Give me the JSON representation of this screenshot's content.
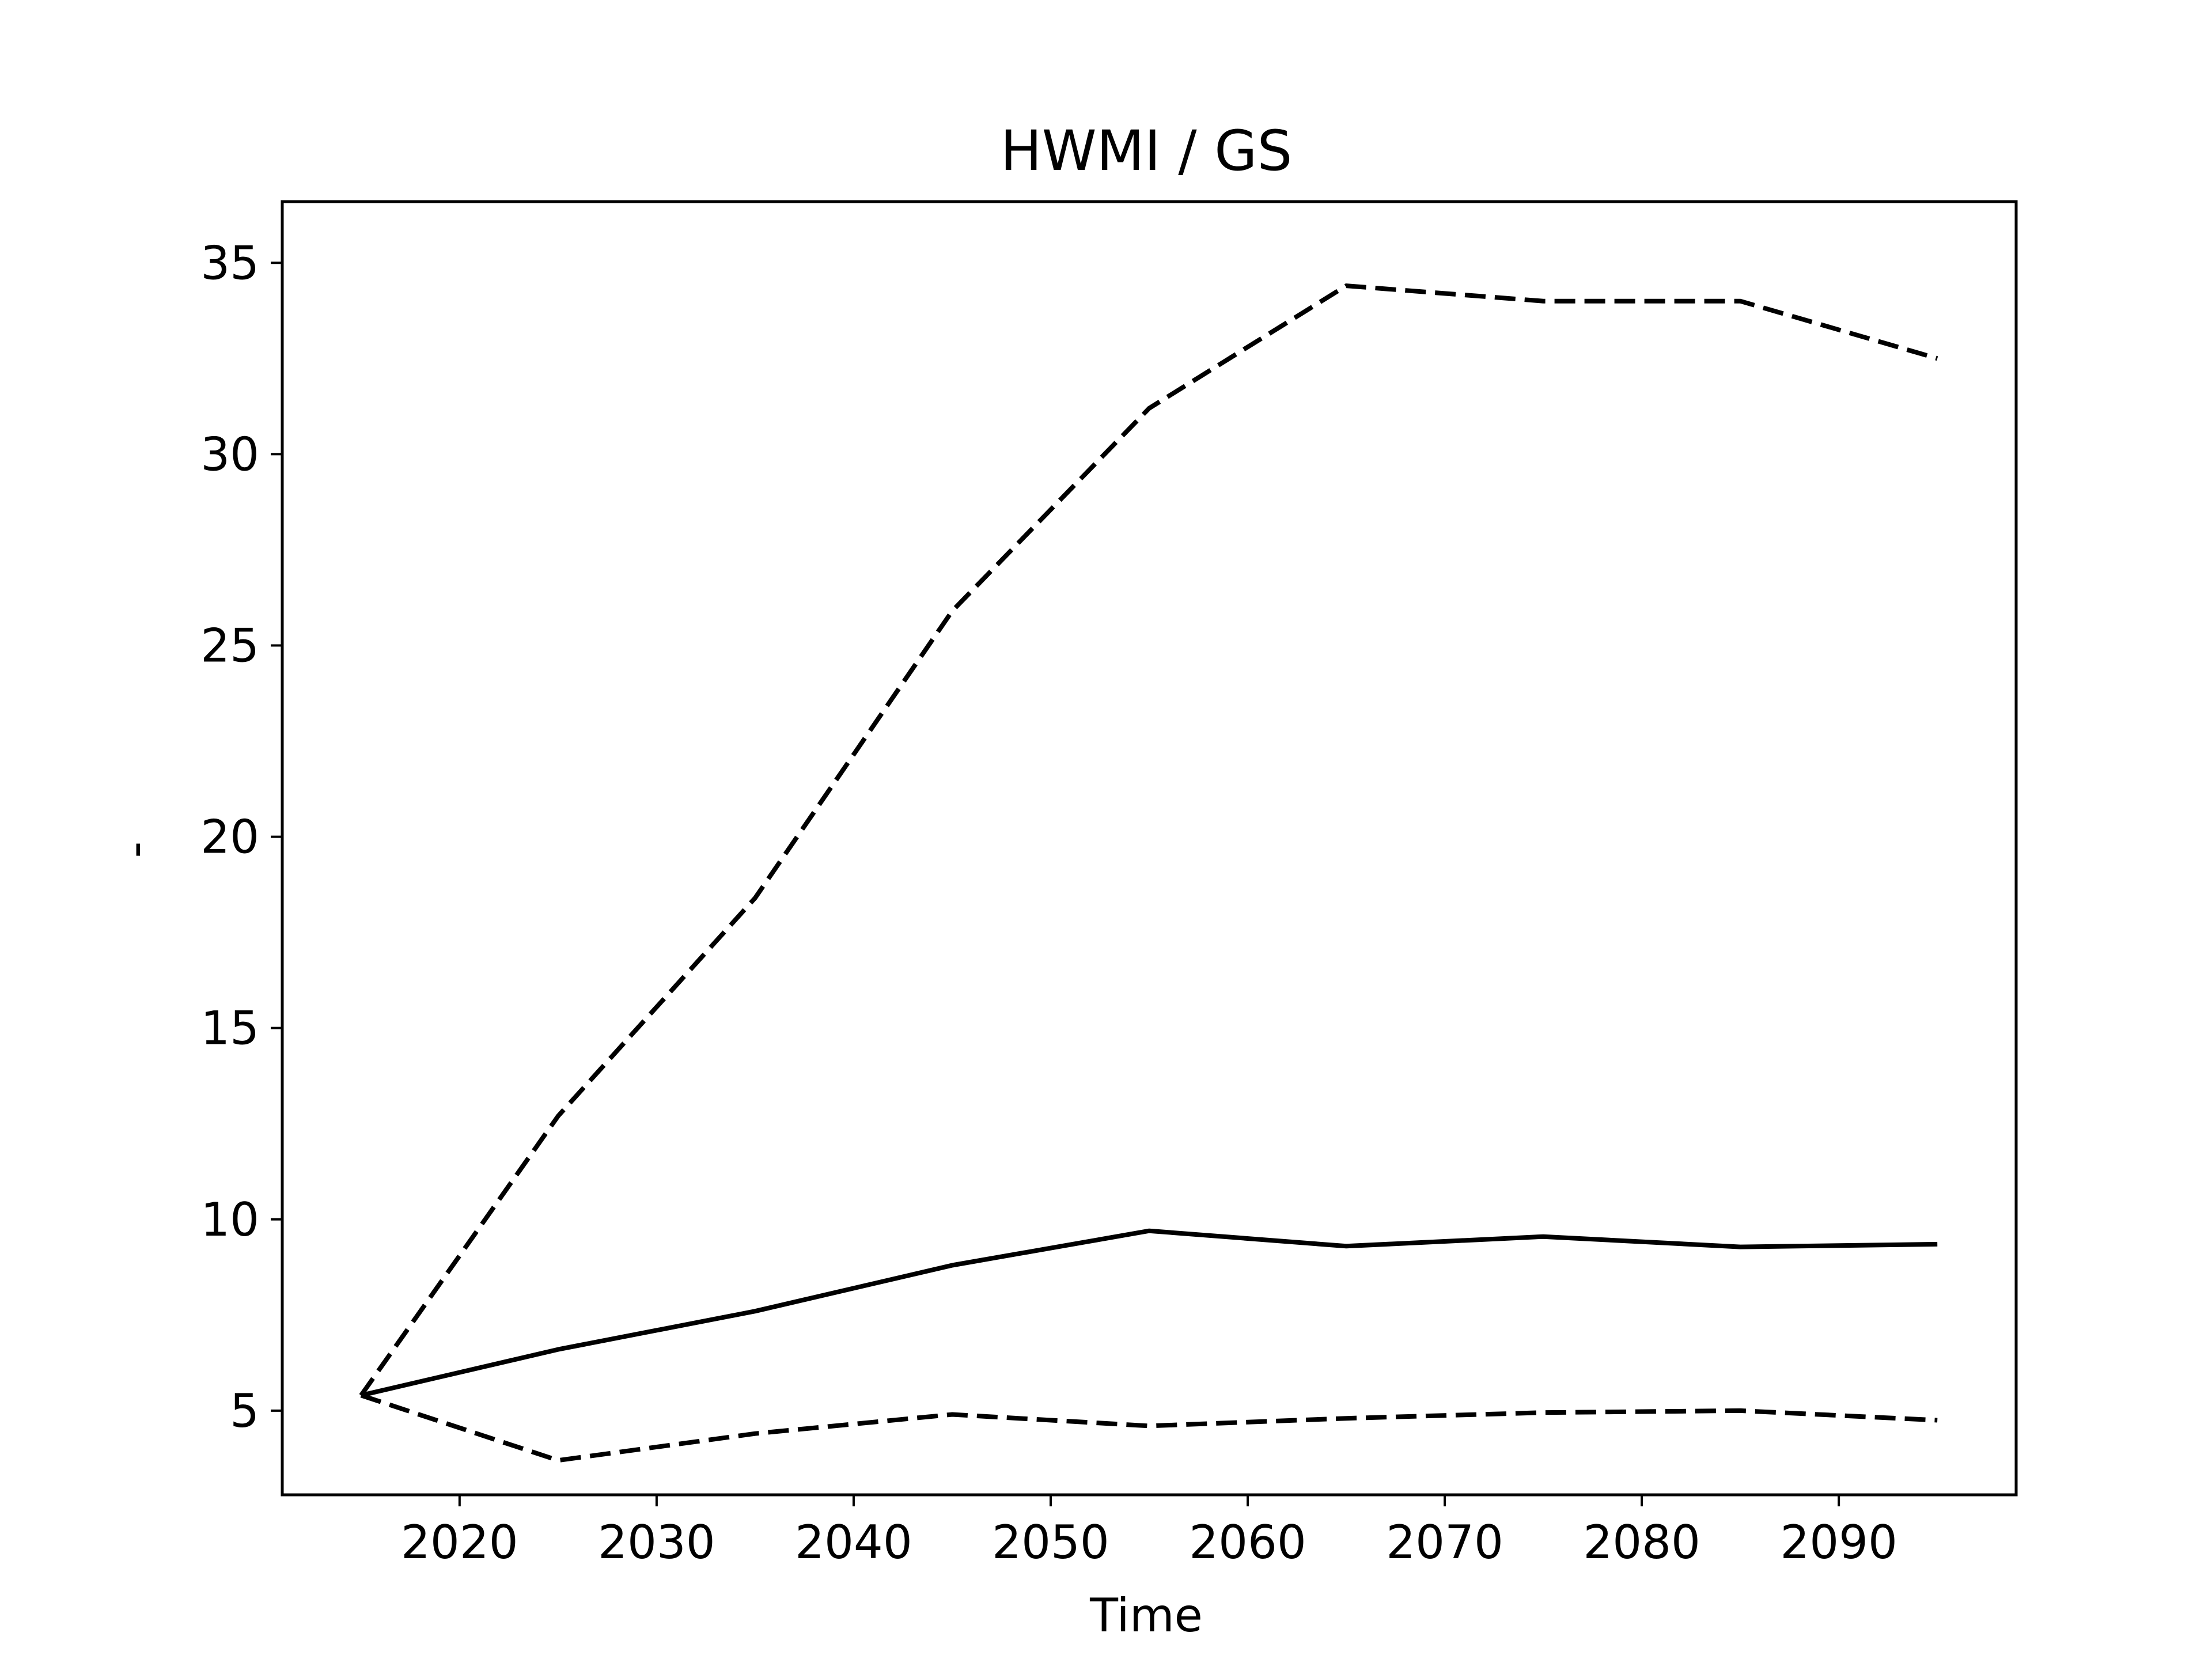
{
  "chart_data": {
    "type": "line",
    "title": "HWMI / GS",
    "xlabel": "Time",
    "ylabel": "-",
    "x": [
      2015,
      2025,
      2035,
      2045,
      2055,
      2065,
      2075,
      2085,
      2095
    ],
    "series": [
      {
        "values": [
          5.4,
          6.6,
          7.6,
          8.8,
          9.7,
          9.3,
          9.55,
          9.28,
          9.35
        ],
        "style": "solid"
      },
      {
        "values": [
          5.4,
          12.7,
          18.4,
          25.9,
          31.2,
          34.4,
          34.0,
          34.0,
          32.5
        ],
        "style": "dashed"
      },
      {
        "values": [
          5.4,
          3.7,
          4.4,
          4.9,
          4.6,
          4.8,
          4.95,
          5.0,
          4.75
        ],
        "style": "dashed"
      }
    ],
    "xlim": [
      2011,
      2099
    ],
    "ylim": [
      2.8,
      36.6
    ],
    "xticks": [
      2020,
      2030,
      2040,
      2050,
      2060,
      2070,
      2080,
      2090
    ],
    "yticks": [
      5,
      10,
      15,
      20,
      25,
      30,
      35
    ],
    "grid": false,
    "colors": {
      "line": "#000000",
      "axes": "#000000",
      "background": "#ffffff"
    }
  }
}
